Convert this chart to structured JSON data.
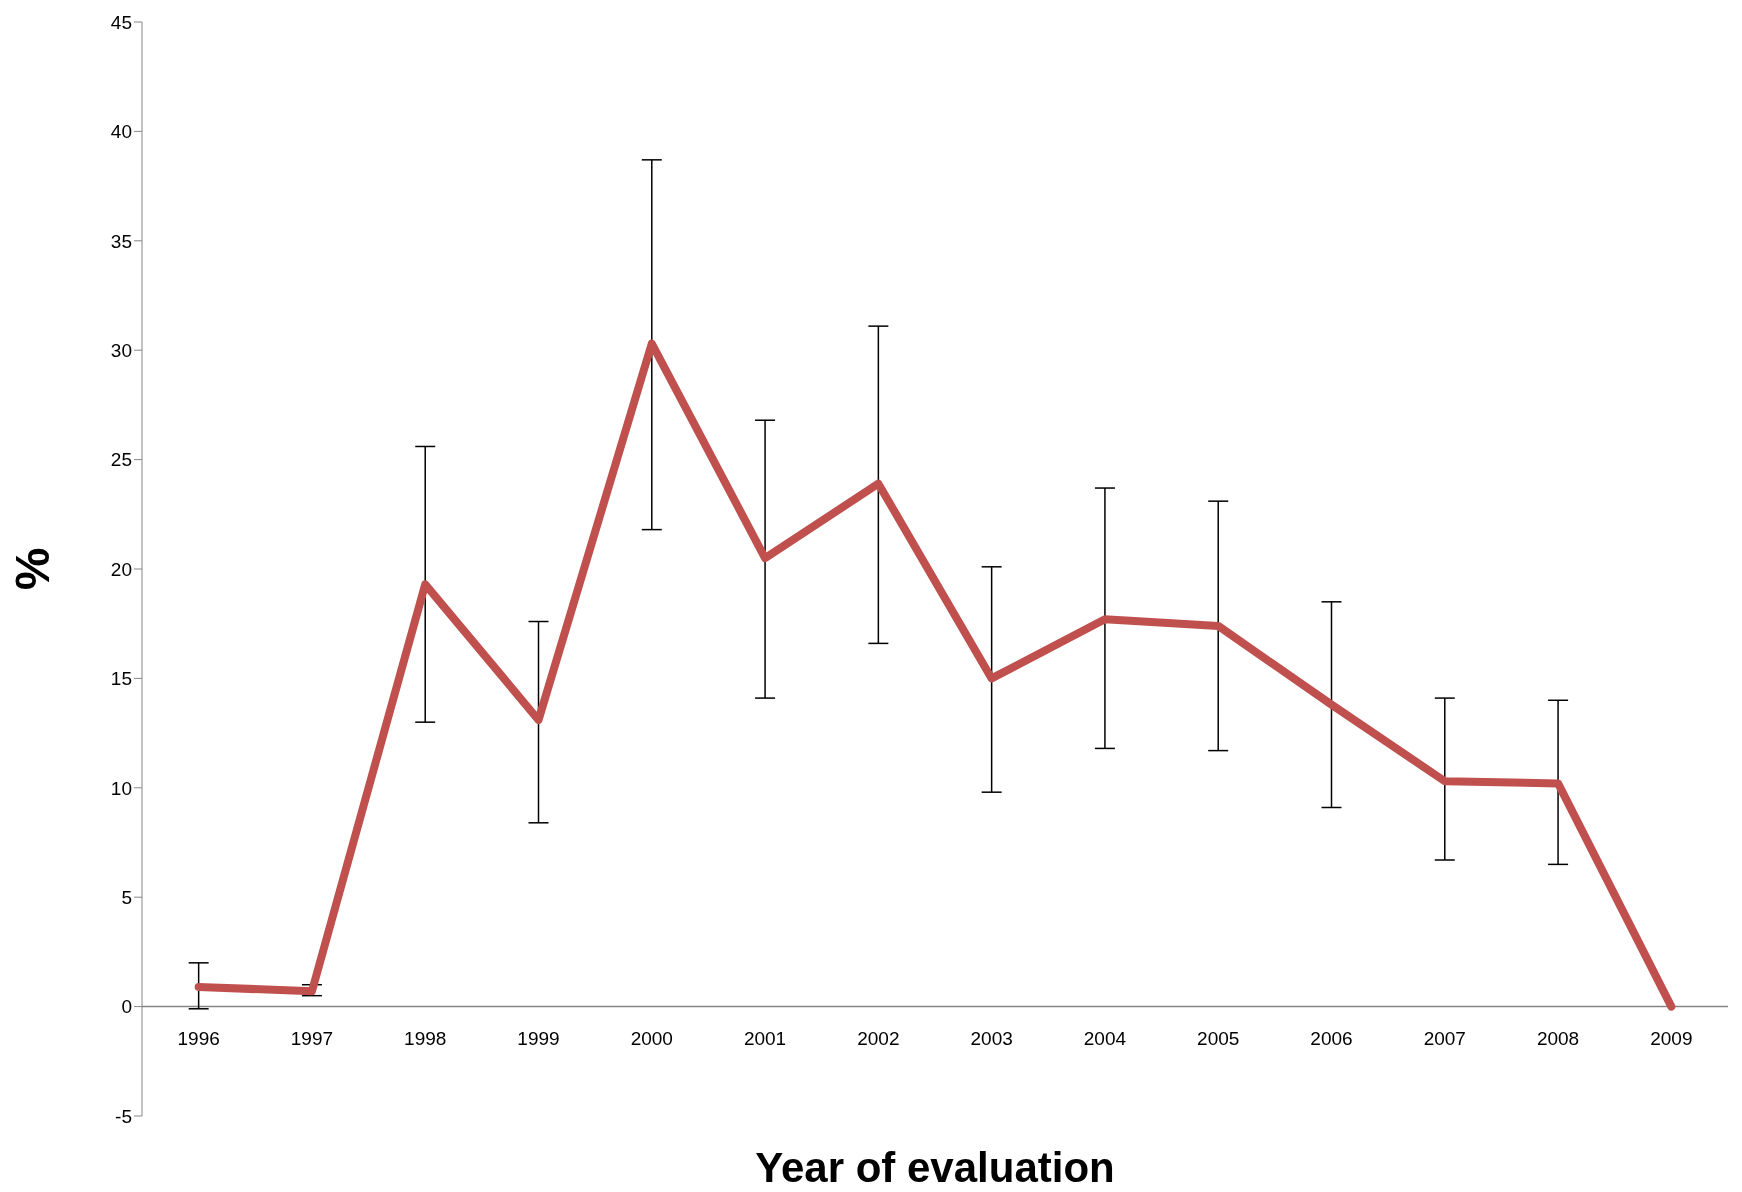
{
  "chart_data": {
    "type": "line",
    "xlabel": "Year of evaluation",
    "ylabel": "%",
    "categories": [
      "1996",
      "1997",
      "1998",
      "1999",
      "2000",
      "2001",
      "2002",
      "2003",
      "2004",
      "2005",
      "2006",
      "2007",
      "2008",
      "2009"
    ],
    "values": [
      0.9,
      0.7,
      19.3,
      13.1,
      30.3,
      20.5,
      23.9,
      15.0,
      17.7,
      17.4,
      13.8,
      10.3,
      10.2,
      0
    ],
    "errors": [
      [
        -0.1,
        2.0
      ],
      [
        0.5,
        1.0
      ],
      [
        13.0,
        25.6
      ],
      [
        8.4,
        17.6
      ],
      [
        21.8,
        38.7
      ],
      [
        14.1,
        26.8
      ],
      [
        16.6,
        31.1
      ],
      [
        9.8,
        20.1
      ],
      [
        11.8,
        23.7
      ],
      [
        11.7,
        23.1
      ],
      [
        9.1,
        18.5
      ],
      [
        6.7,
        14.1
      ],
      [
        6.5,
        14.0
      ],
      null
    ],
    "color": "#c0504d",
    "ylim": [
      -5,
      45
    ],
    "yticks": [
      -5,
      0,
      5,
      10,
      15,
      20,
      25,
      30,
      35,
      40,
      45
    ],
    "grid": false,
    "legend": false,
    "marker": "none",
    "line_style": "solid"
  }
}
